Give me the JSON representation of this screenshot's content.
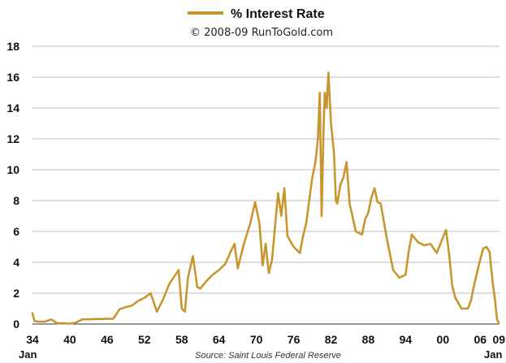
{
  "chart_data": {
    "type": "line",
    "legend": {
      "label": "% Interest Rate",
      "color": "#C8962E",
      "position": "top-center"
    },
    "subtitle": "© 2008-09 RunToGold.com",
    "source": "Source: Saint Louis Federal Reserve",
    "x_start_note": "Jan",
    "x_end_note": "Jan",
    "xlim": [
      1934,
      2009.1
    ],
    "ylim": [
      0,
      18
    ],
    "y_ticks": [
      0,
      2,
      4,
      6,
      8,
      10,
      12,
      14,
      16,
      18
    ],
    "x_ticks": [
      {
        "v": 1934,
        "label": "34"
      },
      {
        "v": 1940,
        "label": "40"
      },
      {
        "v": 1946,
        "label": "46"
      },
      {
        "v": 1952,
        "label": "52"
      },
      {
        "v": 1958,
        "label": "58"
      },
      {
        "v": 1964,
        "label": "64"
      },
      {
        "v": 1970,
        "label": "70"
      },
      {
        "v": 1976,
        "label": "76"
      },
      {
        "v": 1982,
        "label": "82"
      },
      {
        "v": 1988,
        "label": "88"
      },
      {
        "v": 1994,
        "label": "94"
      },
      {
        "v": 2000,
        "label": "00"
      },
      {
        "v": 2006,
        "label": "06"
      },
      {
        "v": 2009,
        "label": "09"
      }
    ],
    "grid": true,
    "series": [
      {
        "name": "% Interest Rate",
        "color": "#C8962E",
        "points": [
          [
            1934.0,
            0.7
          ],
          [
            1934.3,
            0.2
          ],
          [
            1935.0,
            0.15
          ],
          [
            1936.0,
            0.15
          ],
          [
            1937.0,
            0.3
          ],
          [
            1938.0,
            0.05
          ],
          [
            1939.0,
            0.05
          ],
          [
            1940.0,
            0.02
          ],
          [
            1941.0,
            0.1
          ],
          [
            1942.0,
            0.3
          ],
          [
            1947.0,
            0.35
          ],
          [
            1948.0,
            0.95
          ],
          [
            1949.0,
            1.1
          ],
          [
            1950.0,
            1.2
          ],
          [
            1951.0,
            1.5
          ],
          [
            1952.0,
            1.7
          ],
          [
            1953.0,
            2.0
          ],
          [
            1954.0,
            0.8
          ],
          [
            1955.0,
            1.6
          ],
          [
            1956.0,
            2.6
          ],
          [
            1957.0,
            3.2
          ],
          [
            1957.5,
            3.5
          ],
          [
            1958.0,
            1.0
          ],
          [
            1958.5,
            0.8
          ],
          [
            1959.0,
            3.0
          ],
          [
            1959.8,
            4.4
          ],
          [
            1960.5,
            2.4
          ],
          [
            1961.0,
            2.3
          ],
          [
            1962.0,
            2.8
          ],
          [
            1963.0,
            3.2
          ],
          [
            1964.0,
            3.5
          ],
          [
            1965.0,
            3.9
          ],
          [
            1966.0,
            4.8
          ],
          [
            1966.5,
            5.2
          ],
          [
            1967.0,
            3.6
          ],
          [
            1968.0,
            5.2
          ],
          [
            1969.0,
            6.5
          ],
          [
            1969.8,
            7.9
          ],
          [
            1970.5,
            6.5
          ],
          [
            1971.0,
            3.8
          ],
          [
            1971.5,
            5.2
          ],
          [
            1972.0,
            3.3
          ],
          [
            1972.5,
            4.1
          ],
          [
            1973.0,
            6.3
          ],
          [
            1973.5,
            8.5
          ],
          [
            1974.0,
            7.0
          ],
          [
            1974.5,
            8.8
          ],
          [
            1975.0,
            5.7
          ],
          [
            1976.0,
            5.0
          ],
          [
            1977.0,
            4.6
          ],
          [
            1977.5,
            5.7
          ],
          [
            1978.0,
            6.5
          ],
          [
            1978.5,
            8.0
          ],
          [
            1979.0,
            9.5
          ],
          [
            1979.5,
            10.5
          ],
          [
            1979.9,
            12.0
          ],
          [
            1980.2,
            15.0
          ],
          [
            1980.5,
            7.0
          ],
          [
            1980.8,
            12.5
          ],
          [
            1981.0,
            15.0
          ],
          [
            1981.3,
            14.0
          ],
          [
            1981.6,
            16.3
          ],
          [
            1982.0,
            13.0
          ],
          [
            1982.5,
            11.0
          ],
          [
            1982.8,
            8.0
          ],
          [
            1983.0,
            7.8
          ],
          [
            1983.5,
            9.0
          ],
          [
            1984.0,
            9.5
          ],
          [
            1984.5,
            10.5
          ],
          [
            1985.0,
            7.8
          ],
          [
            1986.0,
            6.0
          ],
          [
            1987.0,
            5.8
          ],
          [
            1987.5,
            6.8
          ],
          [
            1988.0,
            7.2
          ],
          [
            1988.5,
            8.2
          ],
          [
            1989.0,
            8.8
          ],
          [
            1989.5,
            7.9
          ],
          [
            1990.0,
            7.8
          ],
          [
            1991.0,
            5.5
          ],
          [
            1992.0,
            3.5
          ],
          [
            1993.0,
            3.0
          ],
          [
            1994.0,
            3.2
          ],
          [
            1994.5,
            4.7
          ],
          [
            1995.0,
            5.8
          ],
          [
            1996.0,
            5.3
          ],
          [
            1997.0,
            5.1
          ],
          [
            1998.0,
            5.2
          ],
          [
            1999.0,
            4.6
          ],
          [
            2000.0,
            5.6
          ],
          [
            2000.5,
            6.1
          ],
          [
            2001.0,
            4.5
          ],
          [
            2001.5,
            2.5
          ],
          [
            2002.0,
            1.7
          ],
          [
            2003.0,
            1.0
          ],
          [
            2004.0,
            1.0
          ],
          [
            2004.5,
            1.5
          ],
          [
            2005.0,
            2.5
          ],
          [
            2006.0,
            4.2
          ],
          [
            2006.5,
            4.9
          ],
          [
            2007.0,
            5.0
          ],
          [
            2007.5,
            4.7
          ],
          [
            2008.0,
            2.7
          ],
          [
            2008.4,
            1.5
          ],
          [
            2008.7,
            0.3
          ],
          [
            2009.0,
            0.05
          ]
        ]
      }
    ]
  }
}
